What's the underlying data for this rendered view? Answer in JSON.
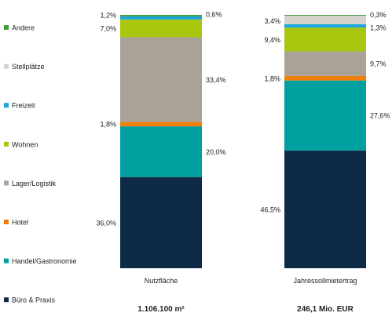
{
  "chart_data": {
    "type": "bar",
    "stacked": "percent",
    "legend_position": "left",
    "categories": [
      "Nutzfläche",
      "Jahressollmietertrag"
    ],
    "totals": [
      "1.106.100 m²",
      "246,1 Mio. EUR"
    ],
    "series": [
      {
        "name": "Büro & Praxis",
        "color": "#0d2b47",
        "values": [
          36.0,
          46.5
        ],
        "labels": [
          "36,0%",
          "46,5%"
        ]
      },
      {
        "name": "Handel/Gastronomie",
        "color": "#00a0a0",
        "values": [
          20.0,
          27.6
        ],
        "labels": [
          "20,0%",
          "27,6%"
        ]
      },
      {
        "name": "Hotel",
        "color": "#f07f09",
        "values": [
          1.8,
          1.8
        ],
        "labels": [
          "1,8%",
          "1,8%"
        ]
      },
      {
        "name": "Lager/Logistik",
        "color": "#aaa197",
        "values": [
          33.4,
          9.7
        ],
        "labels": [
          "33,4%",
          "9,7%"
        ]
      },
      {
        "name": "Wohnen",
        "color": "#a8c70e",
        "values": [
          7.0,
          9.4
        ],
        "labels": [
          "7,0%",
          "9,4%"
        ]
      },
      {
        "name": "Freizeit",
        "color": "#1ba6dc",
        "values": [
          1.2,
          1.3
        ],
        "labels": [
          "1,2%",
          "1,3%"
        ]
      },
      {
        "name": "Stellplätze",
        "color": "#d6d3cd",
        "values": [
          0.0,
          3.4
        ],
        "labels": [
          "",
          "3,4%"
        ]
      },
      {
        "name": "Andere",
        "color": "#3d9c3d",
        "values": [
          0.6,
          0.3
        ],
        "labels": [
          "0,6%",
          "0,3%"
        ]
      }
    ]
  }
}
